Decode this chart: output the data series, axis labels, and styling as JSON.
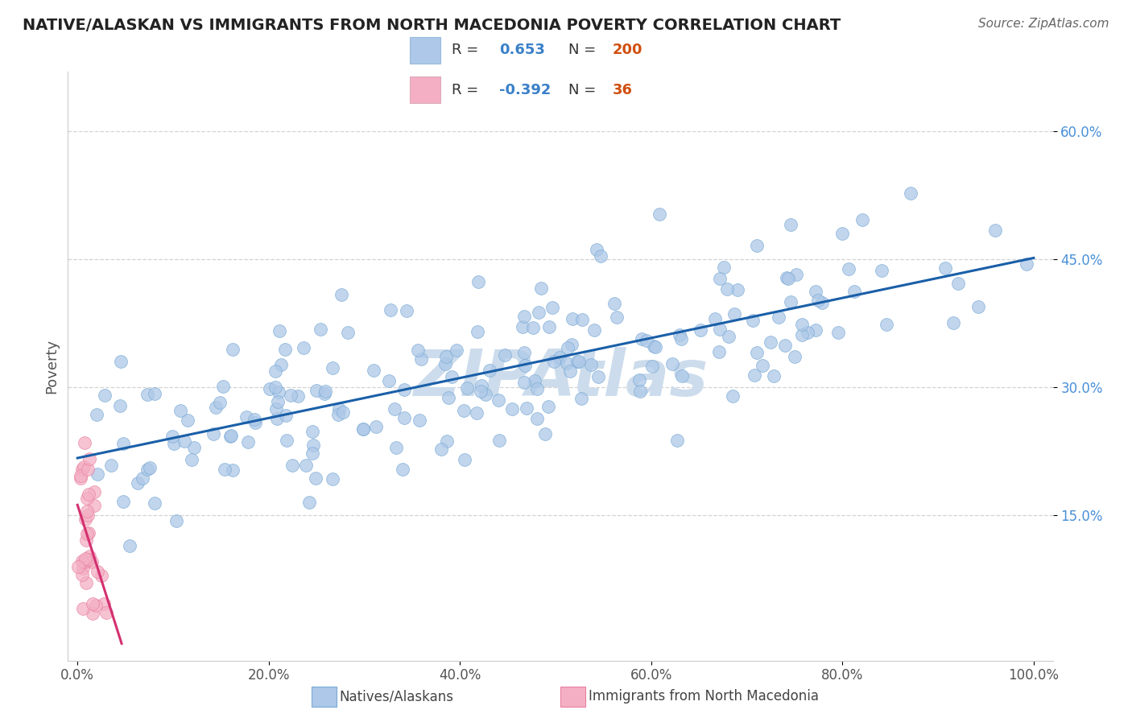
{
  "title": "NATIVE/ALASKAN VS IMMIGRANTS FROM NORTH MACEDONIA POVERTY CORRELATION CHART",
  "source": "Source: ZipAtlas.com",
  "xlabel": "",
  "ylabel": "Poverty",
  "xlim": [
    -0.01,
    1.02
  ],
  "ylim": [
    -0.02,
    0.67
  ],
  "x_ticks": [
    0.0,
    0.2,
    0.4,
    0.6,
    0.8,
    1.0
  ],
  "x_tick_labels": [
    "0.0%",
    "20.0%",
    "40.0%",
    "60.0%",
    "80.0%",
    "100.0%"
  ],
  "y_ticks": [
    0.15,
    0.3,
    0.45,
    0.6
  ],
  "y_tick_labels": [
    "15.0%",
    "30.0%",
    "45.0%",
    "60.0%"
  ],
  "blue_R": 0.653,
  "blue_N": 200,
  "pink_R": -0.392,
  "pink_N": 36,
  "blue_color": "#adc8e8",
  "blue_edge_color": "#7aaad4",
  "blue_line_color": "#1a5fa8",
  "pink_color": "#f4afc4",
  "pink_edge_color": "#e880a0",
  "pink_line_color": "#d43070",
  "watermark": "ZIPAtlas",
  "watermark_color": "#ccdcec",
  "background_color": "#ffffff",
  "grid_color": "#c8c8c8",
  "title_color": "#222222",
  "source_color": "#666666",
  "ytick_color": "#4a90d9",
  "xtick_color": "#555555",
  "ylabel_color": "#555555"
}
